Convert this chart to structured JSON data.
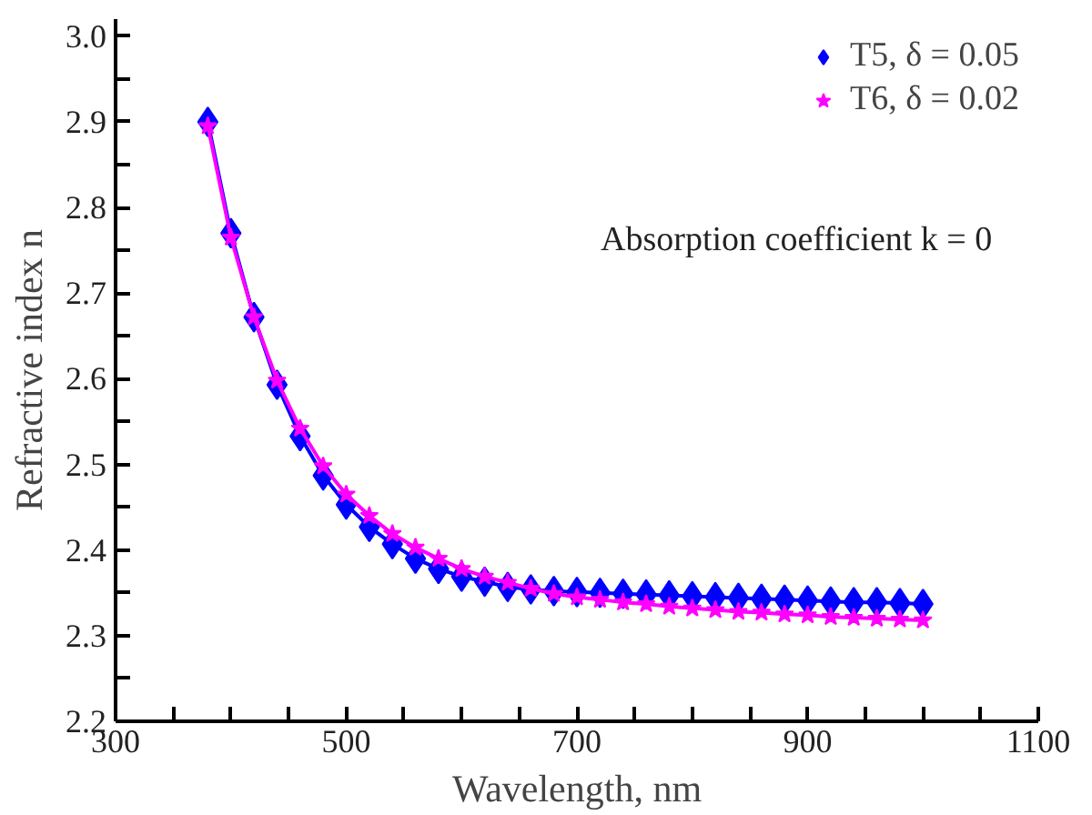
{
  "chart_data": {
    "type": "line",
    "xlabel": "Wavelength, nm",
    "ylabel": "Refractive index n",
    "x": [
      380,
      400,
      420,
      440,
      460,
      480,
      500,
      520,
      540,
      560,
      580,
      600,
      620,
      640,
      660,
      680,
      700,
      720,
      740,
      760,
      780,
      800,
      820,
      840,
      860,
      880,
      900,
      920,
      940,
      960,
      980,
      1000
    ],
    "series": [
      {
        "name": "T5, δ = 0.05",
        "color": "#0000ff",
        "marker": "diamond",
        "values": [
          2.9,
          2.77,
          2.672,
          2.593,
          2.533,
          2.487,
          2.453,
          2.427,
          2.407,
          2.39,
          2.378,
          2.369,
          2.363,
          2.357,
          2.354,
          2.352,
          2.351,
          2.35,
          2.349,
          2.348,
          2.347,
          2.346,
          2.345,
          2.344,
          2.343,
          2.342,
          2.341,
          2.34,
          2.339,
          2.339,
          2.338,
          2.337
        ]
      },
      {
        "name": "T6, δ = 0.02",
        "color": "#ff00ff",
        "marker": "star",
        "values": [
          2.895,
          2.765,
          2.672,
          2.598,
          2.542,
          2.498,
          2.465,
          2.44,
          2.419,
          2.403,
          2.39,
          2.378,
          2.369,
          2.362,
          2.355,
          2.349,
          2.345,
          2.342,
          2.339,
          2.337,
          2.334,
          2.332,
          2.33,
          2.328,
          2.327,
          2.325,
          2.324,
          2.322,
          2.321,
          2.32,
          2.319,
          2.318
        ]
      }
    ],
    "annotations": [
      "Absorption coefficient k = 0"
    ],
    "xlim": [
      300,
      1100
    ],
    "xticks": [
      300,
      {
        "value": 350,
        "label": null
      },
      {
        "value": 400,
        "label": null
      },
      {
        "value": 450,
        "label": null
      },
      500,
      {
        "value": 550,
        "label": null
      },
      {
        "value": 600,
        "label": null
      },
      {
        "value": 650,
        "label": null
      },
      700,
      {
        "value": 750,
        "label": null
      },
      {
        "value": 800,
        "label": null
      },
      {
        "value": 850,
        "label": null
      },
      900,
      {
        "value": 950,
        "label": null
      },
      {
        "value": 1000,
        "label": null
      },
      {
        "value": 1050,
        "label": null
      },
      1100
    ],
    "ylim": [
      2.2,
      3.02
    ],
    "yticks": [
      2.2,
      {
        "value": 2.25,
        "label": null
      },
      2.3,
      {
        "value": 2.35,
        "label": null
      },
      2.4,
      {
        "value": 2.45,
        "label": null
      },
      2.5,
      {
        "value": 2.55,
        "label": null
      },
      2.6,
      {
        "value": 2.65,
        "label": null
      },
      2.7,
      {
        "value": 2.75,
        "label": null
      },
      2.8,
      {
        "value": 2.85,
        "label": null
      },
      2.9,
      {
        "value": 2.95,
        "label": null
      },
      {
        "value": 3.0,
        "label": "3.0"
      }
    ],
    "grid": false,
    "legend": "top right",
    "line_style": "solid"
  }
}
